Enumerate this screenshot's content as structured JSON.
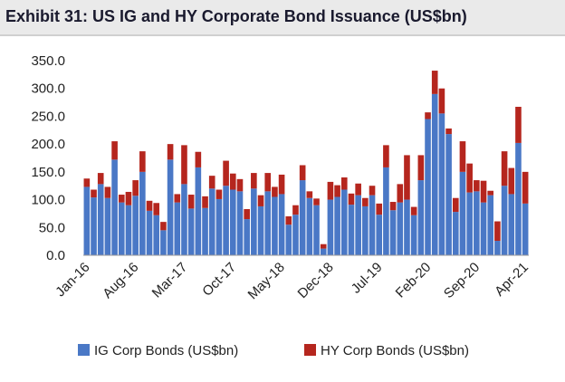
{
  "title": "Exhibit 31: US IG and HY Corporate Bond Issuance (US$bn)",
  "colors": {
    "ig": "#4a78c6",
    "hy": "#b5261e",
    "axis": "#999999",
    "title_bg": "#eaeaea"
  },
  "chart_data": {
    "type": "bar",
    "stacked": true,
    "title": "Exhibit 31: US IG and HY Corporate Bond Issuance (US$bn)",
    "xlabel": "",
    "ylabel": "",
    "ylim": [
      0,
      350
    ],
    "y_ticks": [
      "0.0",
      "50.0",
      "100.0",
      "150.0",
      "200.0",
      "250.0",
      "300.0",
      "350.0"
    ],
    "x_tick_labels": [
      "Jan-16",
      "Aug-16",
      "Mar-17",
      "Oct-17",
      "May-18",
      "Dec-18",
      "Jul-19",
      "Feb-20",
      "Sep-20",
      "Apr-21"
    ],
    "x_tick_every": 7,
    "grid": false,
    "legend": "bottom",
    "categories": [
      "Jan-16",
      "Feb-16",
      "Mar-16",
      "Apr-16",
      "May-16",
      "Jun-16",
      "Jul-16",
      "Aug-16",
      "Sep-16",
      "Oct-16",
      "Nov-16",
      "Dec-16",
      "Jan-17",
      "Feb-17",
      "Mar-17",
      "Apr-17",
      "May-17",
      "Jun-17",
      "Jul-17",
      "Aug-17",
      "Sep-17",
      "Oct-17",
      "Nov-17",
      "Dec-17",
      "Jan-18",
      "Feb-18",
      "Mar-18",
      "Apr-18",
      "May-18",
      "Jun-18",
      "Jul-18",
      "Aug-18",
      "Sep-18",
      "Oct-18",
      "Nov-18",
      "Dec-18",
      "Jan-19",
      "Feb-19",
      "Mar-19",
      "Apr-19",
      "May-19",
      "Jun-19",
      "Jul-19",
      "Aug-19",
      "Sep-19",
      "Oct-19",
      "Nov-19",
      "Dec-19",
      "Jan-20",
      "Feb-20",
      "Mar-20",
      "Apr-20",
      "May-20",
      "Jun-20",
      "Jul-20",
      "Aug-20",
      "Sep-20",
      "Oct-20",
      "Nov-20",
      "Dec-20",
      "Jan-21",
      "Feb-21",
      "Mar-21",
      "Apr-21",
      "May-21"
    ],
    "series": [
      {
        "name": "IG Corp Bonds (US$bn)",
        "color": "#4a78c6",
        "values": [
          123,
          104,
          128,
          103,
          172,
          95,
          90,
          107,
          150,
          80,
          72,
          45,
          172,
          95,
          128,
          84,
          158,
          85,
          120,
          101,
          125,
          118,
          115,
          65,
          120,
          88,
          115,
          105,
          110,
          55,
          73,
          135,
          103,
          90,
          12,
          100,
          105,
          118,
          91,
          108,
          88,
          108,
          73,
          158,
          81,
          95,
          100,
          72,
          135,
          245,
          290,
          255,
          218,
          78,
          150,
          113,
          115,
          95,
          108,
          26,
          125,
          110,
          202,
          93,
          0
        ],
        "hy_values": []
      },
      {
        "name": "HY Corp Bonds (US$bn)",
        "color": "#b5261e",
        "values": [
          15,
          14,
          20,
          20,
          33,
          14,
          24,
          28,
          37,
          18,
          22,
          15,
          28,
          15,
          70,
          25,
          28,
          21,
          23,
          17,
          45,
          29,
          22,
          18,
          28,
          20,
          33,
          18,
          35,
          15,
          17,
          27,
          12,
          12,
          8,
          32,
          21,
          22,
          20,
          21,
          15,
          17,
          20,
          40,
          15,
          33,
          80,
          15,
          45,
          12,
          42,
          45,
          10,
          25,
          55,
          52,
          20,
          39,
          8,
          35,
          62,
          47,
          65,
          57,
          0
        ]
      }
    ]
  },
  "legend": {
    "ig_label": "IG Corp Bonds (US$bn)",
    "hy_label": "HY Corp Bonds (US$bn)"
  }
}
